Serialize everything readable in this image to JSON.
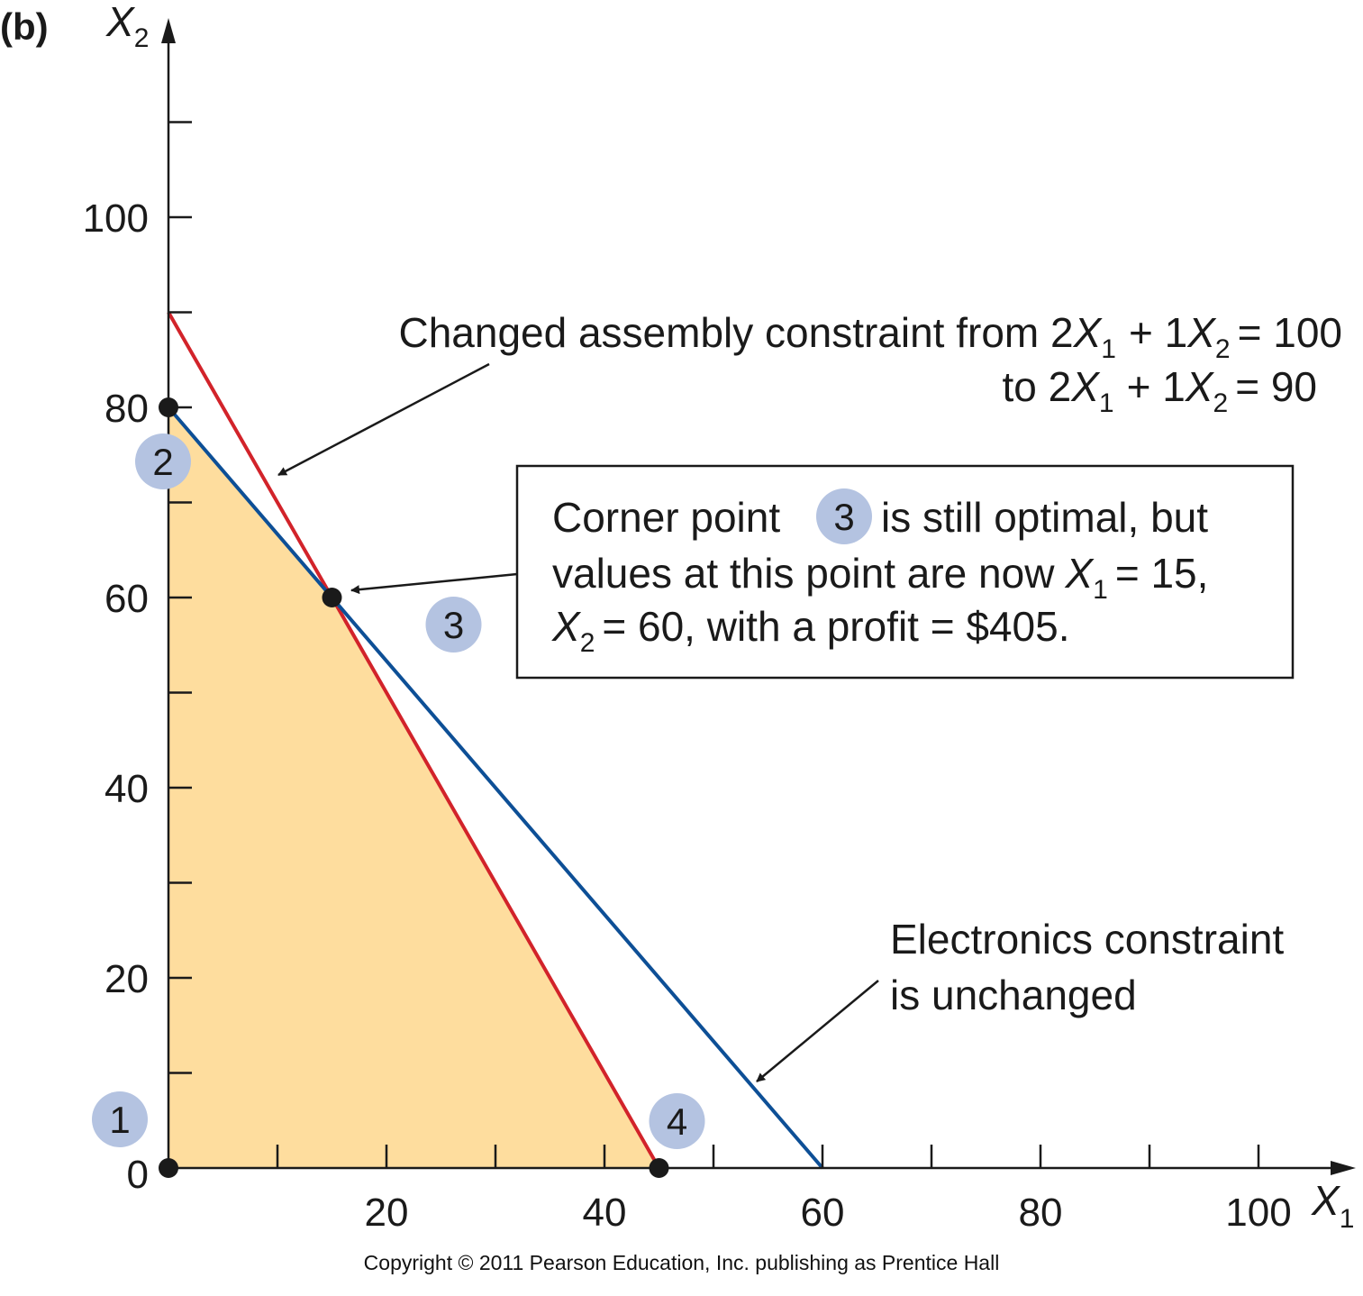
{
  "panel_label": "(b)",
  "copyright": "Copyright © 2011 Pearson Education, Inc. publishing as Prentice Hall",
  "colors": {
    "feasible_region": "#FEDD9E",
    "assembly_constraint": "#D2232A",
    "electronics_constraint": "#0D4F96",
    "corner_badge": "#B4C3E1",
    "axis": "#1a1a1a"
  },
  "annotations": {
    "assembly": {
      "line1_pre": "Changed assembly constraint from 2",
      "line1_eq": "+ 1",
      "line1_end": "= 100",
      "line2_pre": "to 2",
      "line2_eq": "+ 1",
      "line2_end": "= 90"
    },
    "box": {
      "line1_pre": "Corner point",
      "line1_post": "is still optimal, but",
      "line1_badge": "3",
      "line2_pre": "values at this point are now",
      "line2_end": "= 15,",
      "line3_end": "= 60, with a profit = $405."
    },
    "electronics": {
      "line1": "Electronics constraint",
      "line2": "is unchanged"
    }
  },
  "chart_data": {
    "type": "line",
    "x_axis": {
      "label": "X",
      "subscript": "1",
      "range": [
        0,
        110
      ],
      "tick_step": 10,
      "tick_labels": [
        20,
        40,
        60,
        80,
        100
      ]
    },
    "y_axis": {
      "label": "X",
      "subscript": "2",
      "range": [
        0,
        120
      ],
      "tick_step": 10,
      "tick_labels": [
        0,
        20,
        40,
        60,
        80,
        100
      ]
    },
    "grid": false,
    "series": [
      {
        "key": "assembly",
        "points": [
          [
            0,
            90
          ],
          [
            45,
            0
          ]
        ]
      },
      {
        "key": "electronics",
        "points": [
          [
            0,
            80
          ],
          [
            60,
            0
          ]
        ]
      }
    ],
    "feasible_region": [
      [
        0,
        0
      ],
      [
        0,
        80
      ],
      [
        15,
        60
      ],
      [
        45,
        0
      ]
    ],
    "corner_points": [
      {
        "id": "1",
        "x": 0,
        "y": 0
      },
      {
        "id": "2",
        "x": 0,
        "y": 80
      },
      {
        "id": "3",
        "x": 15,
        "y": 60
      },
      {
        "id": "4",
        "x": 45,
        "y": 0
      }
    ]
  }
}
